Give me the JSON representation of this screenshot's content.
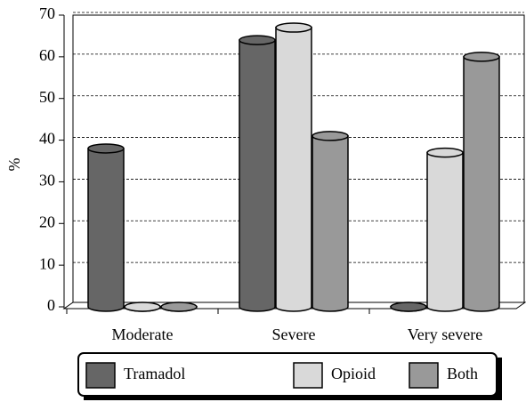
{
  "chart_data": {
    "type": "bar",
    "y_label": "%",
    "categories": [
      "Moderate",
      "Severe",
      "Very severe"
    ],
    "series": [
      {
        "name": "Tramadol",
        "color": "#666666",
        "values": [
          38,
          64,
          0
        ]
      },
      {
        "name": "Opioid",
        "color": "#d9d9d9",
        "values": [
          0,
          67,
          37
        ]
      },
      {
        "name": "Both",
        "color": "#999999",
        "values": [
          0,
          41,
          60
        ]
      }
    ],
    "ylim": [
      0,
      70
    ],
    "yticks": [
      0,
      10,
      20,
      30,
      40,
      50,
      60,
      70
    ],
    "grid": true,
    "legend": "bottom"
  }
}
